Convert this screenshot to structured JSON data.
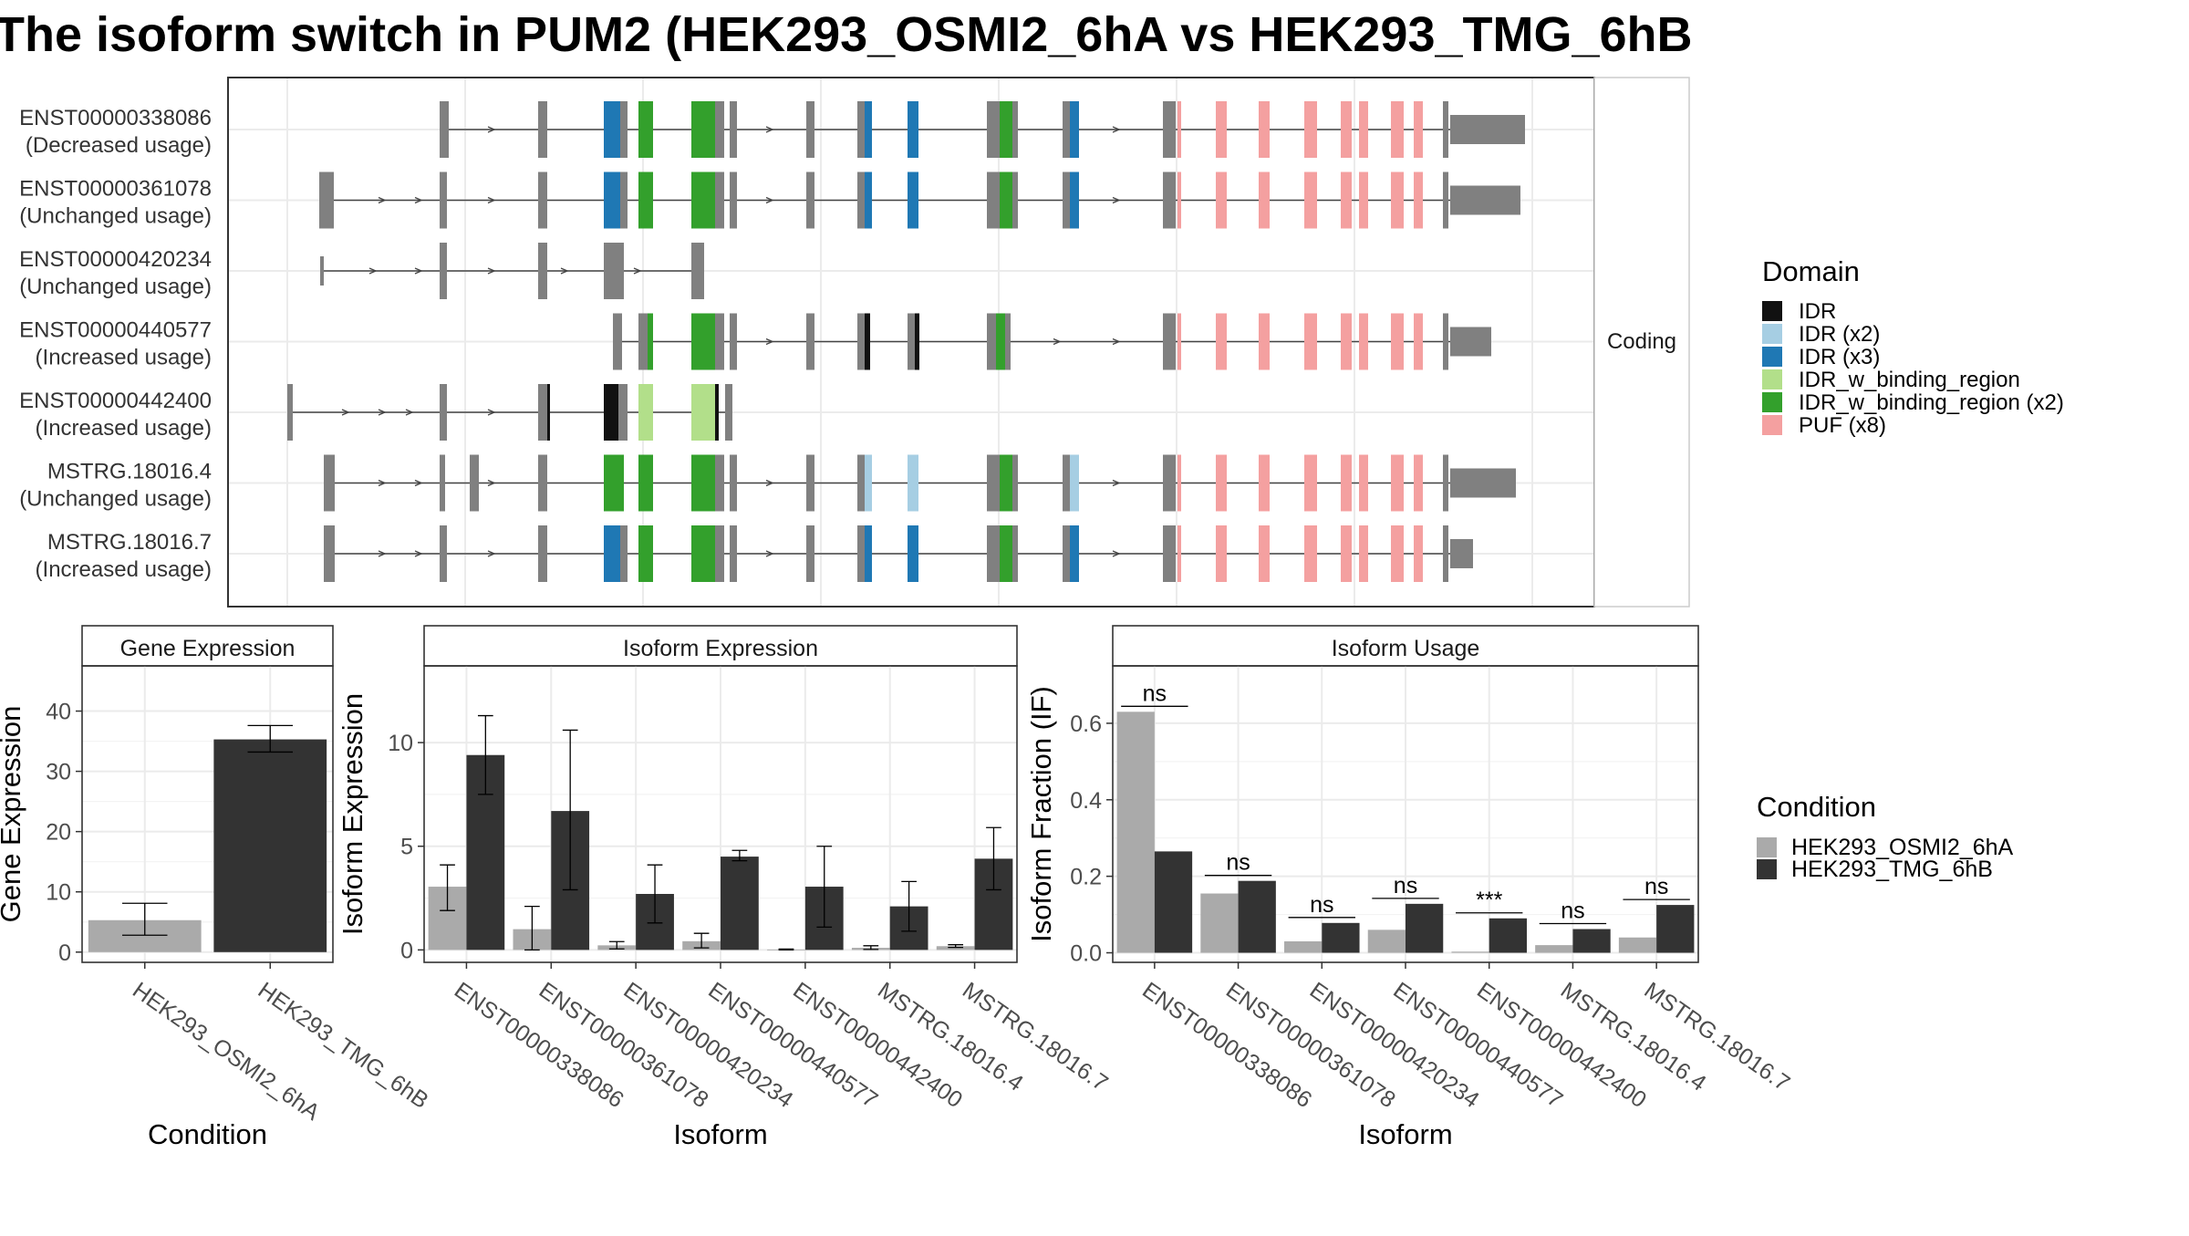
{
  "title": "The isoform switch in PUM2 (HEK293_OSMI2_6hA vs HEK293_TMG_6hB",
  "colors": {
    "intron": "#444444",
    "exon": "#808080",
    "IDR": "#111111",
    "IDR (x2)": "#a6cee3",
    "IDR (x3)": "#1f78b4",
    "IDR_w_binding_region": "#b2df8a",
    "IDR_w_binding_region (x2)": "#33a02c",
    "PUF (x8)": "#f4a0a0",
    "cond_a": "#aaaaaa",
    "cond_b": "#333333",
    "grid": "#ebebeb"
  },
  "structure": {
    "strip_label": "Coding",
    "transcripts": [
      {
        "id": "ENST00000338086",
        "usage": "(Decreased usage)"
      },
      {
        "id": "ENST00000361078",
        "usage": "(Unchanged usage)"
      },
      {
        "id": "ENST00000420234",
        "usage": "(Unchanged usage)"
      },
      {
        "id": "ENST00000440577",
        "usage": "(Increased usage)"
      },
      {
        "id": "ENST00000442400",
        "usage": "(Increased usage)"
      },
      {
        "id": "MSTRG.18016.4",
        "usage": "(Unchanged usage)"
      },
      {
        "id": "MSTRG.18016.7",
        "usage": "(Increased usage)"
      }
    ]
  },
  "legends": {
    "domain_title": "Domain",
    "domain_items": [
      "IDR",
      "IDR (x2)",
      "IDR (x3)",
      "IDR_w_binding_region",
      "IDR_w_binding_region (x2)",
      "PUF (x8)"
    ],
    "condition_title": "Condition",
    "condition_items": [
      "HEK293_OSMI2_6hA",
      "HEK293_TMG_6hB"
    ]
  },
  "chart_data": [
    {
      "type": "bar",
      "title": "Gene Expression",
      "xlabel": "Condition",
      "ylabel": "Gene Expression",
      "categories": [
        "HEK293_OSMI2_6hA",
        "HEK293_TMG_6hB"
      ],
      "values": [
        5.3,
        35.3
      ],
      "error_low": [
        2.8,
        33.2
      ],
      "error_high": [
        8.1,
        37.6
      ],
      "ylim": [
        -1.7,
        47.5
      ],
      "yticks": [
        0,
        10,
        20,
        30,
        40
      ]
    },
    {
      "type": "bar",
      "title": "Isoform Expression",
      "xlabel": "Isoform",
      "ylabel": "Isoform Expression",
      "categories": [
        "ENST00000338086",
        "ENST00000361078",
        "ENST00000420234",
        "ENST00000440577",
        "ENST00000442400",
        "MSTRG.18016.4",
        "MSTRG.18016.7"
      ],
      "series": [
        {
          "name": "HEK293_OSMI2_6hA",
          "values": [
            3.05,
            1.0,
            0.22,
            0.42,
            0.02,
            0.1,
            0.18
          ],
          "error_low": [
            1.9,
            0.0,
            0.05,
            0.1,
            0.0,
            0.02,
            0.12
          ],
          "error_high": [
            4.1,
            2.1,
            0.4,
            0.8,
            0.04,
            0.2,
            0.25
          ]
        },
        {
          "name": "HEK293_TMG_6hB",
          "values": [
            9.4,
            6.7,
            2.7,
            4.5,
            3.05,
            2.1,
            4.4
          ],
          "error_low": [
            7.5,
            2.9,
            1.3,
            4.3,
            1.1,
            0.9,
            2.9
          ],
          "error_high": [
            11.3,
            10.6,
            4.1,
            4.8,
            5.0,
            3.3,
            5.9
          ]
        }
      ],
      "ylim": [
        -0.6,
        13.7
      ],
      "yticks": [
        0,
        5,
        10
      ]
    },
    {
      "type": "bar",
      "title": "Isoform Usage",
      "xlabel": "Isoform",
      "ylabel": "Isoform Fraction (IF)",
      "categories": [
        "ENST00000338086",
        "ENST00000361078",
        "ENST00000420234",
        "ENST00000440577",
        "ENST00000442400",
        "MSTRG.18016.4",
        "MSTRG.18016.7"
      ],
      "series": [
        {
          "name": "HEK293_OSMI2_6hA",
          "values": [
            0.63,
            0.155,
            0.03,
            0.06,
            0.003,
            0.02,
            0.04
          ]
        },
        {
          "name": "HEK293_TMG_6hB",
          "values": [
            0.265,
            0.188,
            0.078,
            0.128,
            0.09,
            0.062,
            0.125
          ]
        }
      ],
      "significance": [
        "ns",
        "ns",
        "ns",
        "ns",
        "***",
        "ns",
        "ns"
      ],
      "ylim": [
        -0.025,
        0.75
      ],
      "yticks": [
        0.0,
        0.2,
        0.4,
        0.6
      ],
      "yticklabels": [
        "0.0",
        "0.2",
        "0.4",
        "0.6"
      ]
    }
  ]
}
